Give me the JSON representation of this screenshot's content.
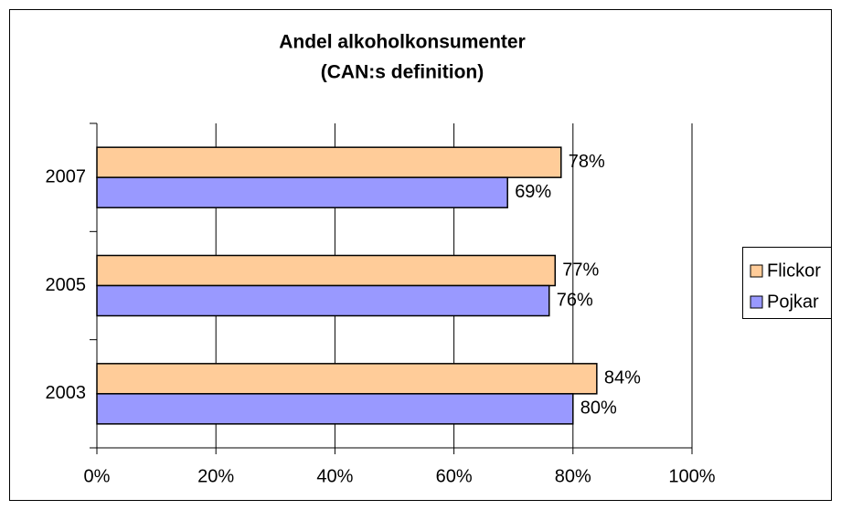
{
  "chart_data": {
    "type": "hbar",
    "title": [
      "Andel alkoholkonsumenter",
      "(CAN:s definition)"
    ],
    "categories": [
      "2003",
      "2005",
      "2007"
    ],
    "series": [
      {
        "name": "Flickor",
        "color": "#ffcc99",
        "values": [
          84,
          77,
          78
        ],
        "value_labels": [
          "84%",
          "77%",
          "78%"
        ]
      },
      {
        "name": "Pojkar",
        "color": "#9999ff",
        "values": [
          80,
          76,
          69
        ],
        "value_labels": [
          "80%",
          "76%",
          "69%"
        ]
      }
    ],
    "xlim": [
      0,
      100
    ],
    "xticks": [
      {
        "value": 0,
        "label": "0%"
      },
      {
        "value": 20,
        "label": "20%"
      },
      {
        "value": 40,
        "label": "40%"
      },
      {
        "value": 60,
        "label": "60%"
      },
      {
        "value": 80,
        "label": "80%"
      },
      {
        "value": 100,
        "label": "100%"
      }
    ],
    "grid": true,
    "legend": "right"
  }
}
